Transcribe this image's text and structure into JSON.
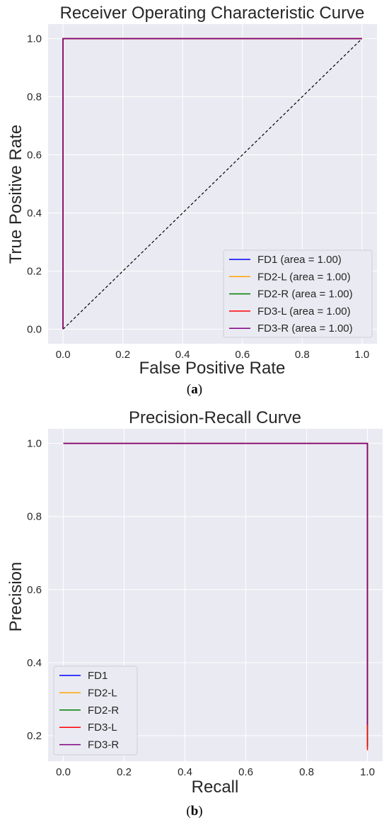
{
  "colors": {
    "plot_bg": "#eaeaf2",
    "grid": "#ffffff",
    "diagonal": "#000000",
    "legend_bg": "#eaeaf2",
    "legend_border": "#cfcfd6"
  },
  "chart_data": [
    {
      "type": "line",
      "title": "Receiver Operating Characteristic Curve",
      "xlabel": "False Positive Rate",
      "ylabel": "True Positive Rate",
      "xlim": [
        -0.05,
        1.05
      ],
      "ylim": [
        -0.05,
        1.05
      ],
      "xticks": [
        "0.0",
        "0.2",
        "0.4",
        "0.6",
        "0.8",
        "1.0"
      ],
      "yticks": [
        "0.0",
        "0.2",
        "0.4",
        "0.6",
        "0.8",
        "1.0"
      ],
      "grid": true,
      "legend_position": "lower-right",
      "series": [
        {
          "name": "FD1 (area = 1.00)",
          "color": "#0000ff",
          "x": [
            0,
            0,
            1
          ],
          "y": [
            0,
            1,
            1
          ]
        },
        {
          "name": "FD2-L (area = 1.00)",
          "color": "#ffa500",
          "x": [
            0,
            0,
            1
          ],
          "y": [
            0,
            1,
            1
          ]
        },
        {
          "name": "FD2-R (area = 1.00)",
          "color": "#008000",
          "x": [
            0,
            0,
            1
          ],
          "y": [
            0,
            1,
            1
          ]
        },
        {
          "name": "FD3-L (area = 1.00)",
          "color": "#ff0000",
          "x": [
            0,
            0,
            1
          ],
          "y": [
            0,
            1,
            1
          ]
        },
        {
          "name": "FD3-R (area = 1.00)",
          "color": "#800080",
          "x": [
            0,
            0,
            1
          ],
          "y": [
            0,
            1,
            1
          ]
        }
      ],
      "reference_line": {
        "x": [
          0,
          1
        ],
        "y": [
          0,
          1
        ],
        "style": "dashed"
      },
      "caption": {
        "open": "(",
        "letter": "a",
        "close": ")"
      }
    },
    {
      "type": "line",
      "title": "Precision-Recall Curve",
      "xlabel": "Recall",
      "ylabel": "Precision",
      "xlim": [
        -0.05,
        1.05
      ],
      "ylim": [
        0.13,
        1.04
      ],
      "xticks": [
        "0.0",
        "0.2",
        "0.4",
        "0.6",
        "0.8",
        "1.0"
      ],
      "yticks": [
        "0.2",
        "0.4",
        "0.6",
        "0.8",
        "1.0"
      ],
      "grid": true,
      "legend_position": "lower-left",
      "series": [
        {
          "name": "FD1",
          "color": "#0000ff",
          "x": [
            0,
            1,
            1
          ],
          "y": [
            1,
            1,
            0.17
          ]
        },
        {
          "name": "FD2-L",
          "color": "#ffa500",
          "x": [
            0,
            1,
            1
          ],
          "y": [
            1,
            1,
            0.17
          ]
        },
        {
          "name": "FD2-R",
          "color": "#008000",
          "x": [
            0,
            1,
            1
          ],
          "y": [
            1,
            1,
            0.17
          ]
        },
        {
          "name": "FD3-L",
          "color": "#ff0000",
          "x": [
            0,
            1,
            1
          ],
          "y": [
            1,
            1,
            0.16
          ]
        },
        {
          "name": "FD3-R",
          "color": "#800080",
          "x": [
            0,
            1,
            1
          ],
          "y": [
            1,
            1,
            0.23
          ]
        }
      ],
      "caption": {
        "open": "(",
        "letter": "b",
        "close": ")"
      }
    }
  ]
}
